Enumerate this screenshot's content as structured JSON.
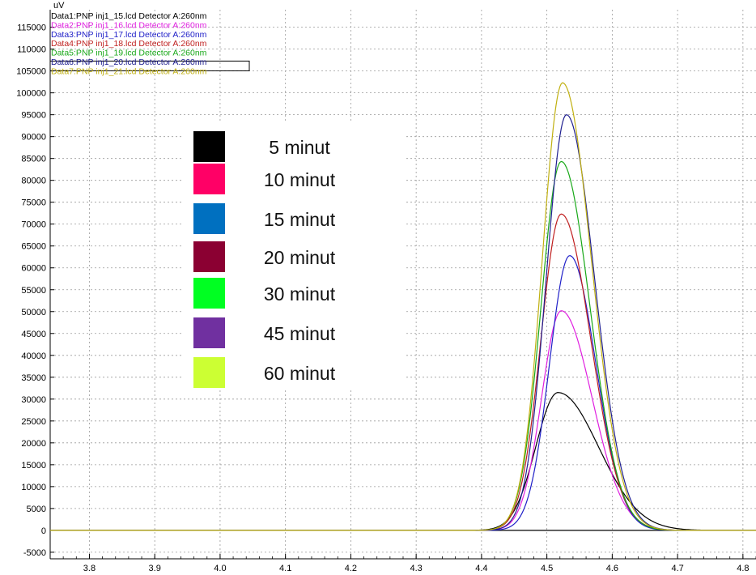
{
  "chart_data": {
    "type": "line",
    "unit_label": "uV",
    "xlim": [
      3.74,
      4.82
    ],
    "ylim": [
      -6500,
      119000
    ],
    "x_ticks": [
      "3.8",
      "3.9",
      "4.0",
      "4.1",
      "4.2",
      "4.3",
      "4.4",
      "4.5",
      "4.6",
      "4.7",
      "4.8"
    ],
    "y_ticks": [
      "115000",
      "110000",
      "105000",
      "100000",
      "95000",
      "90000",
      "85000",
      "80000",
      "75000",
      "70000",
      "65000",
      "60000",
      "55000",
      "50000",
      "45000",
      "40000",
      "35000",
      "30000",
      "25000",
      "20000",
      "15000",
      "10000",
      "5000",
      "0",
      "-5000"
    ],
    "grid": true,
    "trace_legend": [
      {
        "text": "Data1:PNP inj1_15.lcd Detector A:260nm",
        "color": "#000000"
      },
      {
        "text": "Data2:PNP inj1_16.lcd Detector A:260nm",
        "color": "#e020e0"
      },
      {
        "text": "Data3:PNP inj1_17.lcd Detector A:260nm",
        "color": "#2020c8"
      },
      {
        "text": "Data4:PNP inj1_18.lcd Detector A:260nm",
        "color": "#c02020"
      },
      {
        "text": "Data5:PNP inj1_19.lcd Detector A:260nm",
        "color": "#18a818"
      },
      {
        "text": "Data6:PNP inj1_20.lcd Detector A:260nm",
        "color": "#202090"
      },
      {
        "text": "Data7:PNP inj1_21.lcd Detector A:260nm",
        "color": "#c0b010"
      }
    ],
    "time_legend": [
      {
        "label": "5 minut",
        "color": "#000000"
      },
      {
        "label": "10 minut",
        "color": "#ff0066"
      },
      {
        "label": "15 minut",
        "color": "#0070c0"
      },
      {
        "label": "20 minut",
        "color": "#8b0032"
      },
      {
        "label": "30 minut",
        "color": "#00ff22"
      },
      {
        "label": "45 minut",
        "color": "#7030a0"
      },
      {
        "label": "60 minut",
        "color": "#ccff33"
      }
    ],
    "series": [
      {
        "color": "#000000",
        "peak_x": 4.517,
        "peak_y": 31500,
        "sigma_left": 0.034,
        "sigma_right": 0.062
      },
      {
        "color": "#e020e0",
        "peak_x": 4.522,
        "peak_y": 50200,
        "sigma_left": 0.03,
        "sigma_right": 0.047
      },
      {
        "color": "#2020c8",
        "peak_x": 4.535,
        "peak_y": 62800,
        "sigma_left": 0.031,
        "sigma_right": 0.04
      },
      {
        "color": "#c02020",
        "peak_x": 4.522,
        "peak_y": 72300,
        "sigma_left": 0.031,
        "sigma_right": 0.045
      },
      {
        "color": "#18a818",
        "peak_x": 4.522,
        "peak_y": 84300,
        "sigma_left": 0.031,
        "sigma_right": 0.044
      },
      {
        "color": "#202090",
        "peak_x": 4.53,
        "peak_y": 95000,
        "sigma_left": 0.031,
        "sigma_right": 0.043
      },
      {
        "color": "#c0b010",
        "peak_x": 4.524,
        "peak_y": 102300,
        "sigma_left": 0.031,
        "sigma_right": 0.044
      }
    ]
  }
}
